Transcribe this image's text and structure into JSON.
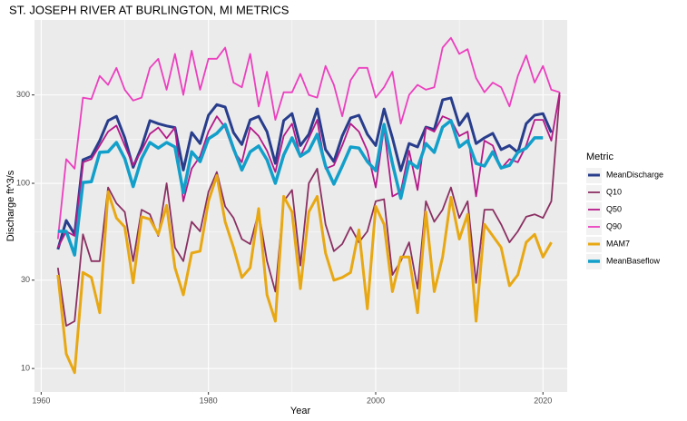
{
  "chart_data": {
    "type": "line",
    "title": "ST. JOSEPH RIVER AT BURLINGTON, MI  METRICS",
    "x_label": "Year",
    "y_label": "Discharge ft^3/s",
    "legend_title": "Metric",
    "legend_position": "right",
    "log_y": true,
    "grid": true,
    "xlim": [
      1959.2,
      2022.9
    ],
    "xticks": [
      1960,
      1980,
      2000,
      2020
    ],
    "ylim": [
      7.47,
      762
    ],
    "yticks": [
      10,
      30,
      100,
      300
    ],
    "x": [
      1962,
      1963,
      1964,
      1965,
      1966,
      1967,
      1968,
      1969,
      1970,
      1971,
      1972,
      1973,
      1974,
      1975,
      1976,
      1977,
      1978,
      1979,
      1980,
      1981,
      1982,
      1983,
      1984,
      1985,
      1986,
      1987,
      1988,
      1989,
      1990,
      1991,
      1992,
      1993,
      1994,
      1995,
      1996,
      1997,
      1998,
      1999,
      2000,
      2001,
      2002,
      2003,
      2004,
      2005,
      2006,
      2007,
      2008,
      2009,
      2010,
      2011,
      2012,
      2013,
      2014,
      2015,
      2016,
      2017,
      2018,
      2019,
      2020,
      2021,
      2022
    ],
    "series": [
      {
        "name": "MeanDischarge",
        "color": "#283d8c",
        "linewidth": 3,
        "values": [
          44,
          63,
          53,
          134,
          140,
          170,
          218,
          230,
          176,
          122,
          157,
          218,
          210,
          204,
          200,
          118,
          188,
          164,
          233,
          266,
          258,
          188,
          162,
          220,
          230,
          190,
          128,
          218,
          238,
          160,
          184,
          252,
          152,
          131,
          180,
          225,
          233,
          184,
          160,
          252,
          176,
          117,
          164,
          157,
          201,
          195,
          282,
          289,
          206,
          238,
          164,
          176,
          186,
          152,
          160,
          147,
          210,
          233,
          238,
          188,
          null
        ]
      },
      {
        "name": "Q10",
        "color": "#8b3063",
        "linewidth": 1.8,
        "values": [
          35,
          17,
          18,
          53,
          38,
          38,
          95,
          78,
          70,
          38,
          72,
          68,
          52,
          100,
          45,
          38,
          62,
          55,
          90,
          115,
          75,
          65,
          50,
          47,
          70,
          38,
          26,
          80,
          92,
          36,
          100,
          120,
          60,
          43,
          47,
          58,
          48,
          55,
          80,
          82,
          32,
          38,
          48,
          27,
          80,
          62,
          72,
          95,
          65,
          80,
          29,
          72,
          72,
          60,
          48,
          55,
          66,
          68,
          65,
          80,
          300
        ]
      },
      {
        "name": "Q50",
        "color": "#b5198a",
        "linewidth": 1.8,
        "values": [
          45,
          55,
          52,
          130,
          135,
          160,
          190,
          205,
          160,
          125,
          150,
          185,
          200,
          175,
          200,
          80,
          120,
          140,
          190,
          230,
          200,
          150,
          130,
          200,
          180,
          150,
          115,
          180,
          210,
          140,
          175,
          220,
          120,
          125,
          160,
          210,
          190,
          150,
          95,
          200,
          85,
          90,
          150,
          92,
          200,
          190,
          230,
          220,
          180,
          190,
          85,
          170,
          160,
          120,
          135,
          130,
          160,
          220,
          220,
          170,
          310
        ]
      },
      {
        "name": "Q90",
        "color": "#ec3fbf",
        "linewidth": 1.8,
        "values": [
          50,
          135,
          120,
          290,
          285,
          380,
          340,
          420,
          320,
          280,
          290,
          420,
          470,
          320,
          500,
          300,
          520,
          320,
          470,
          470,
          540,
          350,
          330,
          500,
          260,
          400,
          220,
          310,
          310,
          390,
          300,
          290,
          430,
          340,
          230,
          360,
          420,
          420,
          290,
          330,
          400,
          210,
          300,
          340,
          320,
          330,
          540,
          610,
          500,
          530,
          370,
          310,
          350,
          330,
          260,
          380,
          490,
          350,
          430,
          320,
          310
        ]
      },
      {
        "name": "MAM7",
        "color": "#e8a813",
        "linewidth": 3,
        "values": [
          32,
          12,
          9.5,
          33,
          31,
          20,
          90,
          65,
          58,
          29,
          66,
          64,
          53,
          76,
          35,
          25,
          42,
          43,
          80,
          110,
          62,
          45,
          31,
          35,
          73,
          25,
          18,
          85,
          70,
          27,
          70,
          85,
          42,
          30,
          31,
          33,
          56,
          21,
          75,
          60,
          26,
          40,
          40,
          20,
          70,
          26,
          40,
          84,
          50,
          68,
          18,
          60,
          52,
          45,
          28,
          32,
          48,
          53,
          40,
          48,
          null
        ]
      },
      {
        "name": "MeanBaseflow",
        "color": "#129fca",
        "linewidth": 3.5,
        "values": [
          55,
          55,
          41,
          101,
          102,
          147,
          148,
          166,
          136,
          96,
          136,
          166,
          155,
          166,
          157,
          89,
          148,
          131,
          174,
          186,
          208,
          154,
          118,
          148,
          159,
          134,
          100,
          142,
          176,
          140,
          150,
          184,
          124,
          99,
          124,
          157,
          155,
          131,
          117,
          208,
          128,
          83,
          131,
          121,
          164,
          147,
          201,
          218,
          157,
          170,
          128,
          124,
          148,
          121,
          125,
          147,
          155,
          176,
          176,
          null,
          null
        ]
      }
    ]
  }
}
